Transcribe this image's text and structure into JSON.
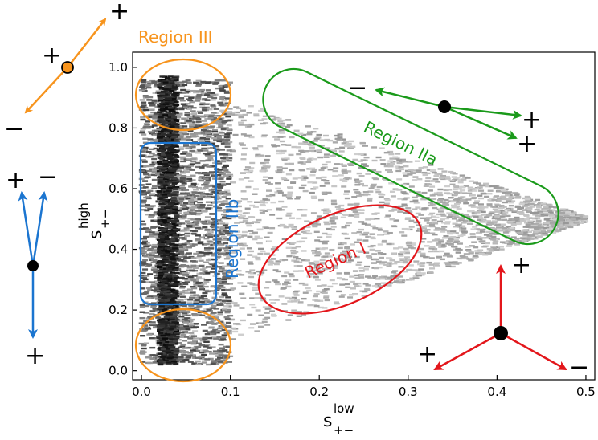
{
  "chart_data": {
    "type": "heatmap",
    "xlabel": {
      "base": "s",
      "sup": "low",
      "sub": "+−"
    },
    "ylabel": {
      "base": "s",
      "sup": "high",
      "sub": "+−"
    },
    "xlim": [
      -0.01,
      0.51
    ],
    "ylim": [
      -0.03,
      1.05
    ],
    "xticks": [
      0.0,
      0.1,
      0.2,
      0.3,
      0.4,
      0.5
    ],
    "yticks": [
      0.0,
      0.2,
      0.4,
      0.6,
      0.8,
      1.0
    ],
    "xtick_labels": [
      "0.0",
      "0.1",
      "0.2",
      "0.3",
      "0.4",
      "0.5"
    ],
    "ytick_labels": [
      "0.0",
      "0.2",
      "0.4",
      "0.6",
      "0.8",
      "1.0"
    ],
    "grid": false,
    "density_support": {
      "description_vertices": [
        [
          0.02,
          0.97
        ],
        [
          0.5,
          0.5
        ],
        [
          0.02,
          0.02
        ]
      ],
      "dense_band_x": [
        0.02,
        0.04
      ]
    },
    "regions": [
      {
        "name": "Region III",
        "color": "#f7941d",
        "shape": "ellipse",
        "center": [
          0.05,
          0.9
        ],
        "radii": [
          0.05,
          0.08
        ]
      },
      {
        "name": "Region III",
        "color": "#f7941d",
        "shape": "ellipse",
        "center": [
          0.05,
          0.04
        ],
        "radii": [
          0.05,
          0.09
        ]
      },
      {
        "name": "Region IIb",
        "color": "#1b75d0",
        "shape": "rounded-rect",
        "x": [
          0.0,
          0.08
        ],
        "y": [
          0.21,
          0.77
        ]
      },
      {
        "name": "Region IIa",
        "color": "#1a9a1a",
        "shape": "stadium",
        "from": [
          0.16,
          0.84
        ],
        "to": [
          0.48,
          0.6
        ]
      },
      {
        "name": "Region I",
        "color": "#e3161b",
        "shape": "ellipse",
        "center": [
          0.22,
          0.37
        ],
        "radii": [
          0.1,
          0.16
        ]
      }
    ]
  },
  "labels": {
    "region3": "Region III",
    "region2a": "Region IIa",
    "region2b": "Region IIb",
    "region1": "Region I"
  },
  "signs": {
    "plus": "+",
    "minus": "−"
  },
  "colors": {
    "region3": "#f7941d",
    "region2b": "#1b75d0",
    "region2a": "#1a9a1a",
    "region1": "#e3161b",
    "density": "#1a1a1a"
  }
}
